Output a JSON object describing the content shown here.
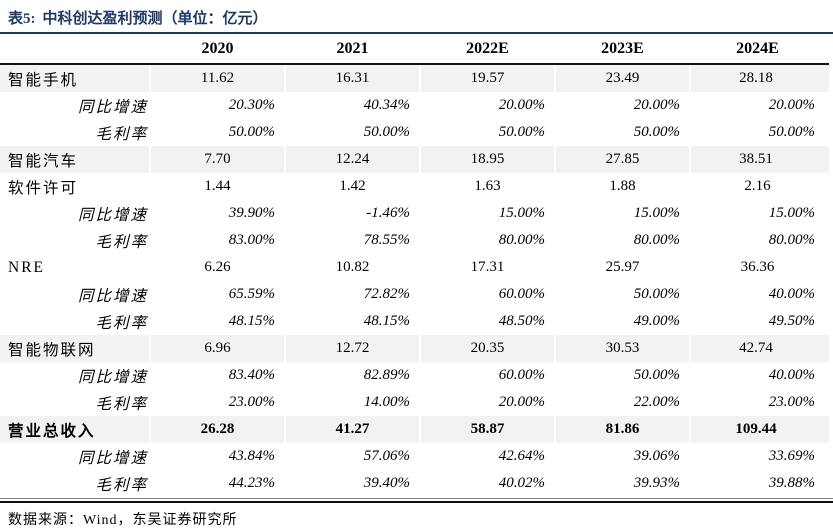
{
  "title": {
    "label": "表5:",
    "text": "中科创达盈利预测（单位：亿元）"
  },
  "colors": {
    "title_navy": "#1F3864",
    "row_shade": "#F2F2F2",
    "rule_dark": "#141414",
    "rule_thin": "#7F7F7F"
  },
  "table": {
    "columns": [
      "2020",
      "2021",
      "2022E",
      "2023E",
      "2024E"
    ],
    "rows": [
      {
        "label": "智能手机",
        "type": "main",
        "shaded": true,
        "values": [
          "11.62",
          "16.31",
          "19.57",
          "23.49",
          "28.18"
        ]
      },
      {
        "label": "同比增速",
        "type": "sub",
        "shaded": false,
        "values": [
          "20.30%",
          "40.34%",
          "20.00%",
          "20.00%",
          "20.00%"
        ]
      },
      {
        "label": "毛利率",
        "type": "sub",
        "shaded": false,
        "values": [
          "50.00%",
          "50.00%",
          "50.00%",
          "50.00%",
          "50.00%"
        ]
      },
      {
        "label": "智能汽车",
        "type": "main",
        "shaded": true,
        "values": [
          "7.70",
          "12.24",
          "18.95",
          "27.85",
          "38.51"
        ]
      },
      {
        "label": "软件许可",
        "type": "main",
        "shaded": false,
        "values": [
          "1.44",
          "1.42",
          "1.63",
          "1.88",
          "2.16"
        ]
      },
      {
        "label": "同比增速",
        "type": "sub",
        "shaded": false,
        "values": [
          "39.90%",
          "-1.46%",
          "15.00%",
          "15.00%",
          "15.00%"
        ]
      },
      {
        "label": "毛利率",
        "type": "sub",
        "shaded": false,
        "values": [
          "83.00%",
          "78.55%",
          "80.00%",
          "80.00%",
          "80.00%"
        ]
      },
      {
        "label": "NRE",
        "type": "main",
        "shaded": false,
        "values": [
          "6.26",
          "10.82",
          "17.31",
          "25.97",
          "36.36"
        ]
      },
      {
        "label": "同比增速",
        "type": "sub",
        "shaded": false,
        "values": [
          "65.59%",
          "72.82%",
          "60.00%",
          "50.00%",
          "40.00%"
        ]
      },
      {
        "label": "毛利率",
        "type": "sub",
        "shaded": false,
        "values": [
          "48.15%",
          "48.15%",
          "48.50%",
          "49.00%",
          "49.50%"
        ]
      },
      {
        "label": "智能物联网",
        "type": "main",
        "shaded": true,
        "values": [
          "6.96",
          "12.72",
          "20.35",
          "30.53",
          "42.74"
        ]
      },
      {
        "label": "同比增速",
        "type": "sub",
        "shaded": false,
        "values": [
          "83.40%",
          "82.89%",
          "60.00%",
          "50.00%",
          "40.00%"
        ]
      },
      {
        "label": "毛利率",
        "type": "sub",
        "shaded": false,
        "values": [
          "23.00%",
          "14.00%",
          "20.00%",
          "22.00%",
          "23.00%"
        ]
      },
      {
        "label": "营业总收入",
        "type": "total",
        "shaded": true,
        "values": [
          "26.28",
          "41.27",
          "58.87",
          "81.86",
          "109.44"
        ]
      },
      {
        "label": "同比增速",
        "type": "sub",
        "shaded": false,
        "values": [
          "43.84%",
          "57.06%",
          "42.64%",
          "39.06%",
          "33.69%"
        ]
      },
      {
        "label": "毛利率",
        "type": "sub",
        "shaded": false,
        "values": [
          "44.23%",
          "39.40%",
          "40.02%",
          "39.93%",
          "39.88%"
        ]
      }
    ]
  },
  "footer": {
    "source": "数据来源：Wind，东吴证券研究所"
  }
}
